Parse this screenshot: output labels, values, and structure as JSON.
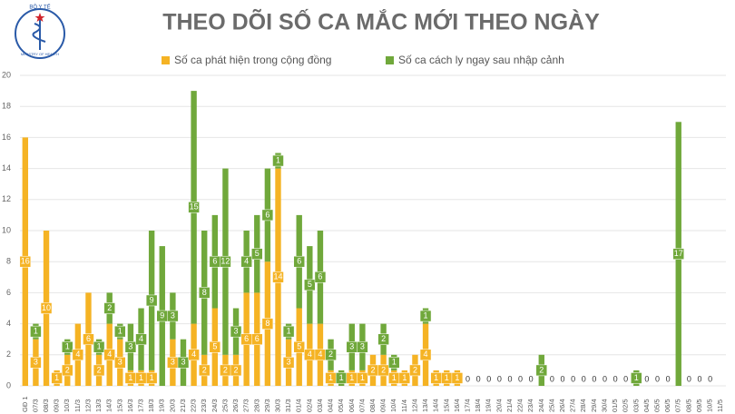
{
  "chart_data": {
    "type": "stacked-bar",
    "title": "THEO DÕI SỐ CA MẮC MỚI THEO NGÀY",
    "logo_text": [
      "BỘ Y TẾ",
      "MINISTRY OF HEALTH"
    ],
    "categories": [
      "GĐ 1",
      "07/3",
      "08/3",
      "09/3",
      "10/3",
      "11/3",
      "12/3",
      "13/3",
      "14/3",
      "15/3",
      "16/3",
      "17/3",
      "18/3",
      "19/3",
      "20/3",
      "21/3",
      "22/3",
      "23/3",
      "24/3",
      "25/3",
      "26/3",
      "27/3",
      "28/3",
      "29/3",
      "30/3",
      "31/3",
      "01/4",
      "02/4",
      "03/4",
      "04/4",
      "05/4",
      "06/4",
      "07/4",
      "08/4",
      "09/4",
      "10/4",
      "11/4",
      "12/4",
      "13/4",
      "14/4",
      "15/4",
      "16/4",
      "17/4",
      "18/4",
      "19/4",
      "20/4",
      "21/4",
      "22/4",
      "23/4",
      "24/4",
      "25/4",
      "26/4",
      "27/4",
      "28/4",
      "29/4",
      "30/4",
      "01/5",
      "02/5",
      "03/5",
      "04/5",
      "05/5",
      "06/5",
      "07/5",
      "08/5",
      "09/5",
      "10/5",
      "11/5"
    ],
    "series": [
      {
        "name": "Số ca phát hiện trong cộng đồng",
        "color": "#f5b324",
        "values": [
          16,
          3,
          10,
          1,
          2,
          4,
          6,
          2,
          4,
          3,
          1,
          1,
          1,
          0,
          3,
          0,
          4,
          2,
          5,
          2,
          2,
          6,
          6,
          8,
          14,
          3,
          5,
          4,
          4,
          1,
          0,
          1,
          1,
          2,
          2,
          1,
          1,
          2,
          4,
          1,
          1,
          1,
          0,
          0,
          0,
          0,
          0,
          0,
          0,
          0,
          0,
          0,
          0,
          0,
          0,
          0,
          0,
          0,
          0,
          0,
          0,
          0,
          0,
          0,
          0,
          0,
          null
        ]
      },
      {
        "name": "Số ca cách ly ngay sau nhập cảnh",
        "color": "#70a83b",
        "values": [
          0,
          1,
          0,
          0,
          1,
          0,
          0,
          1,
          2,
          1,
          3,
          4,
          9,
          9,
          3,
          3,
          15,
          8,
          6,
          12,
          3,
          4,
          5,
          6,
          1,
          1,
          6,
          5,
          6,
          2,
          1,
          3,
          3,
          0,
          2,
          1,
          0,
          0,
          1,
          0,
          0,
          0,
          0,
          0,
          0,
          0,
          0,
          0,
          0,
          2,
          0,
          0,
          0,
          0,
          0,
          0,
          0,
          0,
          1,
          0,
          0,
          0,
          17,
          0,
          0,
          0,
          null
        ]
      }
    ],
    "ylim": [
      0,
      20
    ],
    "yticks": [
      0,
      2,
      4,
      6,
      8,
      10,
      12,
      14,
      16,
      18,
      20
    ],
    "grid": true
  }
}
